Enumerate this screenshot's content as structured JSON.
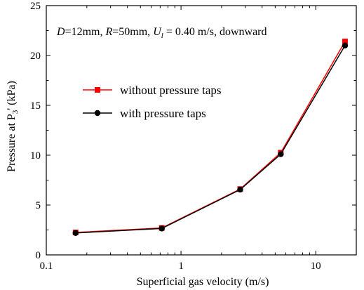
{
  "chart_data": {
    "type": "line",
    "x_scale": "log",
    "xlim": [
      0.1,
      20
    ],
    "ylim": [
      0,
      25
    ],
    "x_ticks": [
      0.1,
      1,
      10
    ],
    "x_tick_labels": [
      "0.1",
      "1",
      "10"
    ],
    "y_ticks": [
      0,
      5,
      10,
      15,
      20,
      25
    ],
    "y_tick_labels": [
      "0",
      "5",
      "10",
      "15",
      "20",
      "25"
    ],
    "xlabel": "Superficial gas velocity (m/s)",
    "ylabel": {
      "prefix": "Pressure at P",
      "sub": "3",
      "suffix": "' (kPa)"
    },
    "annotation": {
      "D_sym": "D",
      "D_text": "=12mm, ",
      "R_sym": "R",
      "R_text": "=50mm, ",
      "U_sym": "U",
      "U_sub": "l",
      "U_text": " = 0.40 m/s, downward"
    },
    "legend_position": "center-left",
    "grid": false,
    "series": [
      {
        "name": "without pressure taps",
        "color": "#ff0000",
        "marker": "square",
        "x": [
          0.165,
          0.72,
          2.75,
          5.5,
          16.5
        ],
        "y": [
          2.25,
          2.7,
          6.6,
          10.25,
          21.4
        ]
      },
      {
        "name": "with pressure taps",
        "color": "#000000",
        "marker": "circle",
        "x": [
          0.165,
          0.72,
          2.75,
          5.5,
          16.5
        ],
        "y": [
          2.2,
          2.65,
          6.55,
          10.1,
          21.0
        ]
      }
    ]
  }
}
